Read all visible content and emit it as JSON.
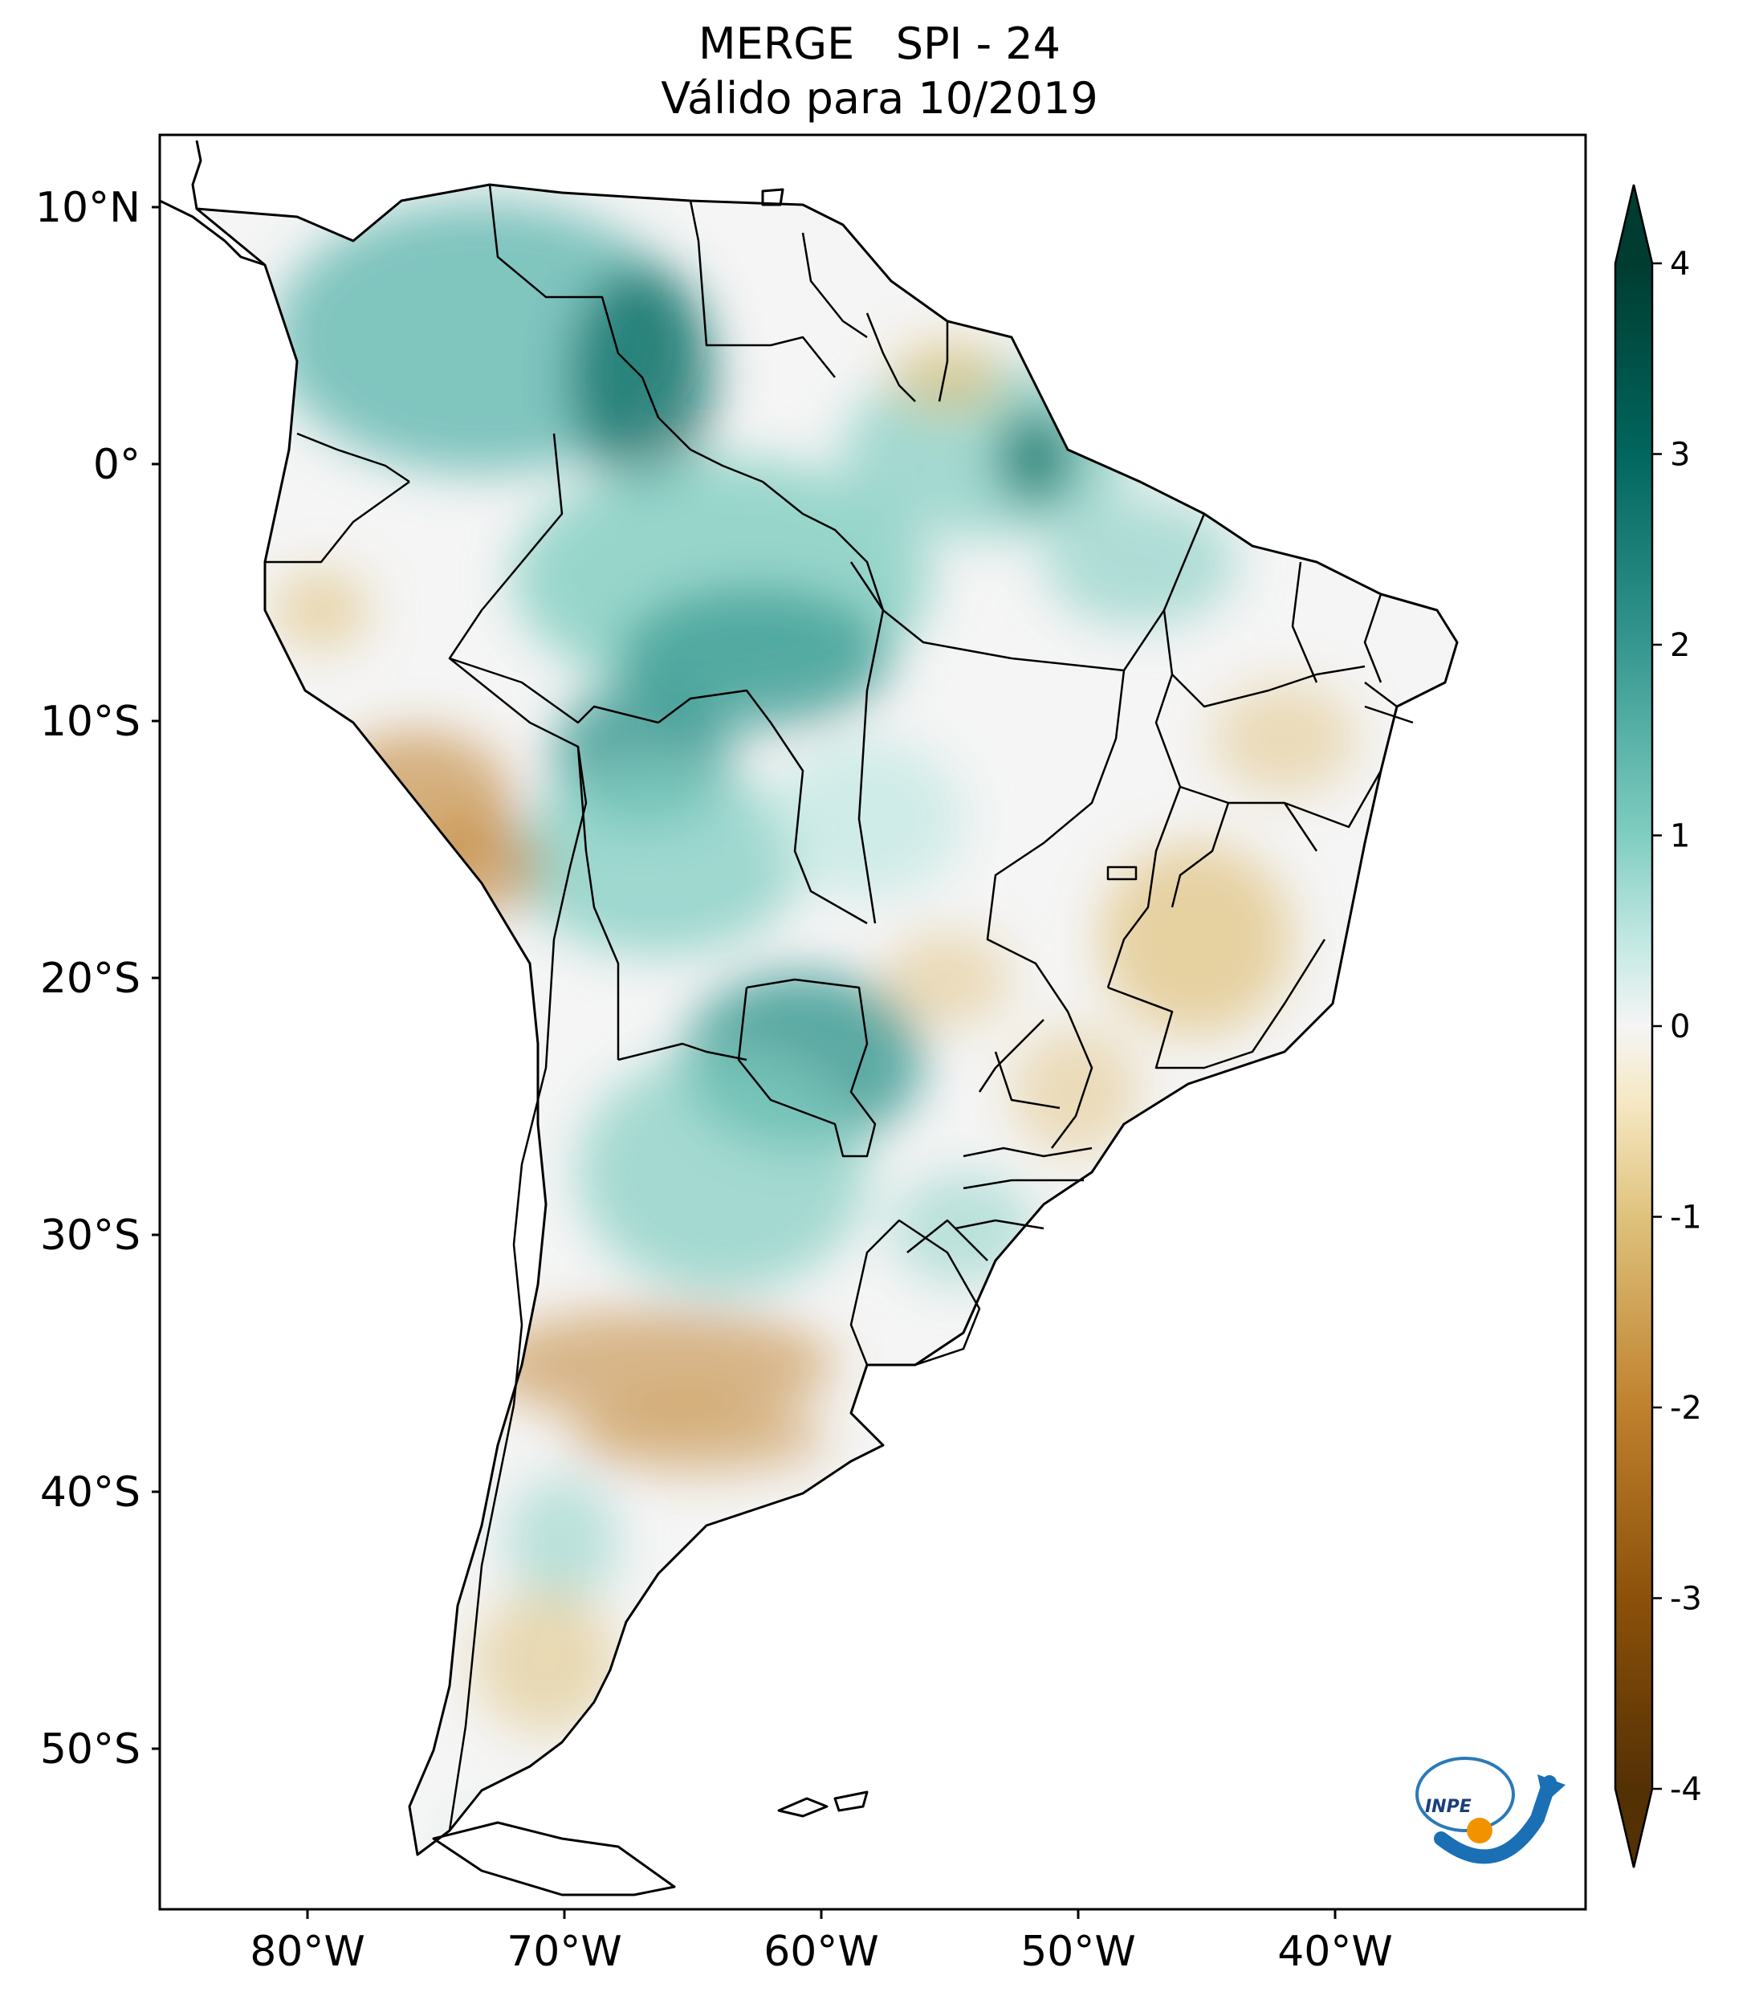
{
  "title": {
    "line1": "MERGE   SPI - 24",
    "line2": "Válido para 10/2019"
  },
  "map": {
    "region": "South America",
    "lon_range": [
      -85,
      -29
    ],
    "lat_range": [
      -56,
      13
    ],
    "lat_ticks": [
      "10°N",
      "0°",
      "10°S",
      "20°S",
      "30°S",
      "40°S",
      "50°S"
    ],
    "lon_ticks": [
      "80°W",
      "70°W",
      "60°W",
      "50°W",
      "40°W"
    ],
    "logo": "INPE"
  },
  "colorbar": {
    "cmap": "BrBG",
    "min": -4,
    "max": 4,
    "ticks": [
      "4",
      "3",
      "2",
      "1",
      "0",
      "-1",
      "-2",
      "-3",
      "-4"
    ],
    "colors": {
      "wettest": "#003c30",
      "wet": "#35978f",
      "light_wet": "#c7eae5",
      "neutral": "#f5f5f5",
      "light_dry": "#f6e8c3",
      "dry": "#bf812d",
      "driest": "#543005"
    }
  }
}
